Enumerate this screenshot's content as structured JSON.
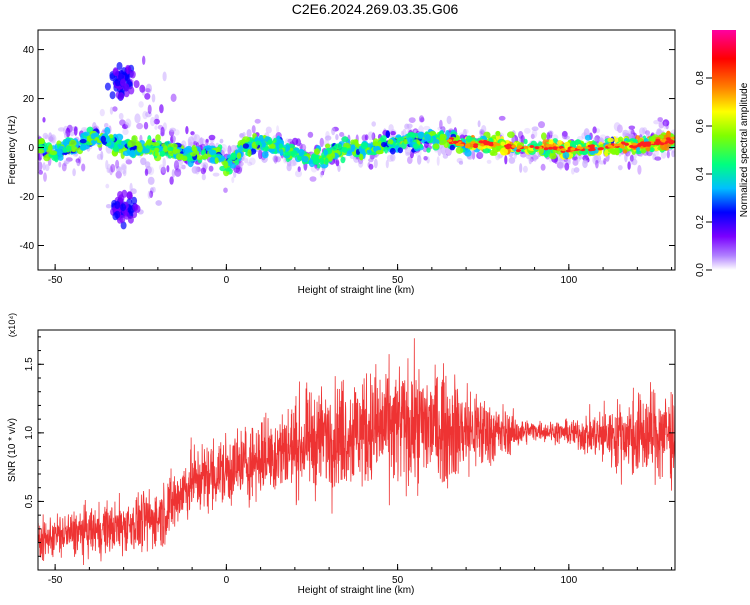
{
  "title": "C2E6.2024.269.03.35.G06",
  "chart_data": [
    {
      "type": "heatmap",
      "xlabel": "Height of straight line (km)",
      "ylabel": "Frequency (Hz)",
      "xlim": [
        -55,
        131
      ],
      "ylim": [
        -50,
        48
      ],
      "xticks": [
        -50,
        0,
        50,
        100
      ],
      "yticks": [
        -40,
        -20,
        0,
        20,
        40
      ],
      "colorbar": {
        "label": "Normalized spectral amplitude",
        "range": [
          0,
          1
        ],
        "ticks": [
          "0.0",
          "0.2",
          "0.4",
          "0.6",
          "0.8"
        ],
        "colors": [
          "#ffffff",
          "#7a00ff",
          "#0000ff",
          "#00bfff",
          "#00ff80",
          "#80ff00",
          "#ffff00",
          "#ff8000",
          "#ff0000",
          "#ff00a0"
        ]
      },
      "ridge": {
        "x": [
          -55,
          -50,
          -45,
          -40,
          -35,
          -32,
          -30,
          -25,
          -20,
          -15,
          -10,
          -5,
          -2,
          0,
          5,
          10,
          15,
          20,
          25,
          30,
          35,
          40,
          45,
          50,
          55,
          60,
          65,
          70,
          75,
          80,
          85,
          90,
          95,
          100,
          105,
          110,
          115,
          120,
          125,
          131
        ],
        "y": [
          1,
          -2,
          1,
          3,
          4,
          0,
          0,
          0,
          0,
          -2,
          -3,
          -2,
          -3,
          -8,
          0,
          2,
          1,
          -2,
          -5,
          -3,
          0,
          -2,
          1,
          2,
          3,
          4,
          3,
          1,
          2,
          1,
          0,
          0,
          0,
          -1,
          0,
          0,
          1,
          1,
          2,
          3
        ]
      },
      "side_lobes": [
        {
          "x": -30,
          "y": 27
        },
        {
          "x": -30,
          "y": -25
        }
      ]
    },
    {
      "type": "line",
      "xlabel": "Height of straight line (km)",
      "ylabel": "SNR (10 * v/v)",
      "multiplier": "(x10⁴)",
      "xlim": [
        -55,
        131
      ],
      "ylim": [
        0,
        1.75
      ],
      "xticks": [
        -50,
        0,
        50,
        100
      ],
      "yticks": [
        0.5,
        1.0,
        1.5
      ],
      "color": "#ee3333",
      "envelope": {
        "x": [
          -55,
          -50,
          -40,
          -30,
          -20,
          -15,
          -10,
          0,
          10,
          20,
          30,
          40,
          50,
          60,
          70,
          80,
          85,
          90,
          100,
          110,
          120,
          131
        ],
        "mean": [
          0.2,
          0.25,
          0.28,
          0.32,
          0.38,
          0.5,
          0.65,
          0.72,
          0.82,
          0.9,
          0.98,
          1.02,
          1.05,
          1.05,
          1.02,
          1.0,
          1.0,
          1.02,
          1.0,
          0.98,
          0.98,
          1.0
        ],
        "spread": [
          0.12,
          0.14,
          0.16,
          0.18,
          0.2,
          0.22,
          0.22,
          0.24,
          0.26,
          0.3,
          0.34,
          0.38,
          0.4,
          0.38,
          0.32,
          0.18,
          0.1,
          0.06,
          0.08,
          0.18,
          0.28,
          0.32
        ]
      }
    }
  ]
}
